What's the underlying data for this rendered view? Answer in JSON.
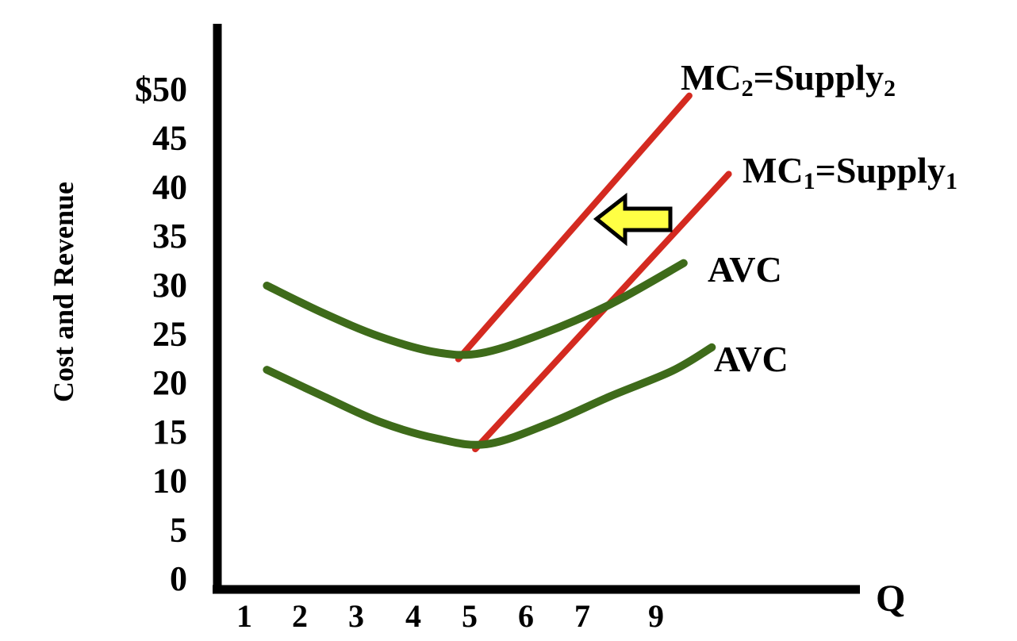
{
  "chart_data": {
    "type": "line",
    "ylabel": "Cost and Revenue",
    "xlabel": "Q",
    "ylim": [
      0,
      50
    ],
    "y_ticks": [
      "0",
      "5",
      "10",
      "15",
      "20",
      "25",
      "30",
      "35",
      "40",
      "45",
      "$50"
    ],
    "x_ticks": [
      "1",
      "2",
      "3",
      "4",
      "5",
      "6",
      "7",
      "9"
    ],
    "series": [
      {
        "name": "MC2=Supply2",
        "label_main": "MC",
        "label_sub1": "2",
        "label_mid": "=Supply",
        "label_sub2": "2",
        "color": "#d42a20",
        "points": [
          [
            4.8,
            22.4
          ],
          [
            8.9,
            49.3
          ]
        ]
      },
      {
        "name": "MC1=Supply1",
        "label_main": "MC",
        "label_sub1": "1",
        "label_mid": "=Supply",
        "label_sub2": "1",
        "color": "#d42a20",
        "points": [
          [
            5.1,
            13.2
          ],
          [
            9.6,
            41.3
          ]
        ]
      },
      {
        "name": "AVC",
        "label": "AVC",
        "color": "#3e6b1a",
        "points": [
          [
            1.4,
            29.9
          ],
          [
            2.4,
            27.1
          ],
          [
            3.4,
            24.7
          ],
          [
            4.4,
            23.1
          ],
          [
            5.2,
            23.0
          ],
          [
            6.3,
            25.0
          ],
          [
            7.5,
            28.0
          ],
          [
            8.8,
            32.2
          ]
        ]
      },
      {
        "name": "AVC",
        "label": "AVC",
        "color": "#3e6b1a",
        "points": [
          [
            1.4,
            21.3
          ],
          [
            2.4,
            18.6
          ],
          [
            3.4,
            16.0
          ],
          [
            4.4,
            14.3
          ],
          [
            5.3,
            13.7
          ],
          [
            6.4,
            15.8
          ],
          [
            7.5,
            18.6
          ],
          [
            8.6,
            21.2
          ],
          [
            9.3,
            23.6
          ]
        ]
      }
    ],
    "arrow": {
      "direction": "left",
      "fill": "#ffff44",
      "stroke": "#000000"
    }
  }
}
